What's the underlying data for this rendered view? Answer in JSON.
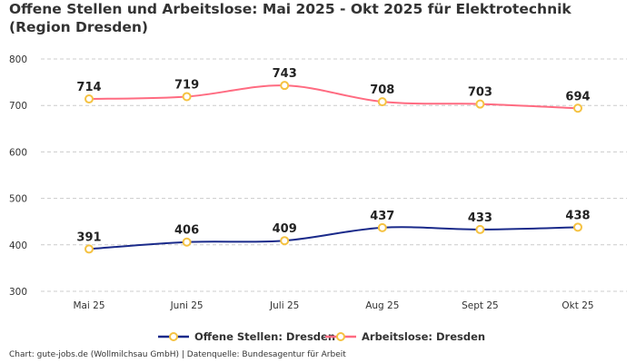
{
  "chart_data": {
    "type": "line",
    "title": "Offene Stellen und Arbeitslose: Mai 2025 - Okt 2025 für Elektrotechnik (Region Dresden)",
    "categories": [
      "Mai 25",
      "Juni 25",
      "Juli 25",
      "Aug 25",
      "Sept 25",
      "Okt 25"
    ],
    "ylim": [
      300,
      800
    ],
    "yticks": [
      300,
      400,
      500,
      600,
      700,
      800
    ],
    "grid": true,
    "legend_position": "bottom",
    "series": [
      {
        "name": "Offene Stellen: Dresden",
        "values": [
          391,
          406,
          409,
          437,
          433,
          438
        ],
        "color": "#1a2a8a",
        "marker_color": "#f5c242"
      },
      {
        "name": "Arbeitslose: Dresden",
        "values": [
          714,
          719,
          743,
          708,
          703,
          694
        ],
        "color": "#ff6b81",
        "marker_color": "#f5c242"
      }
    ],
    "credit": "Chart: gute-jobs.de (Wollmilchsau GmbH) | Datenquelle: Bundesagentur für Arbeit"
  }
}
